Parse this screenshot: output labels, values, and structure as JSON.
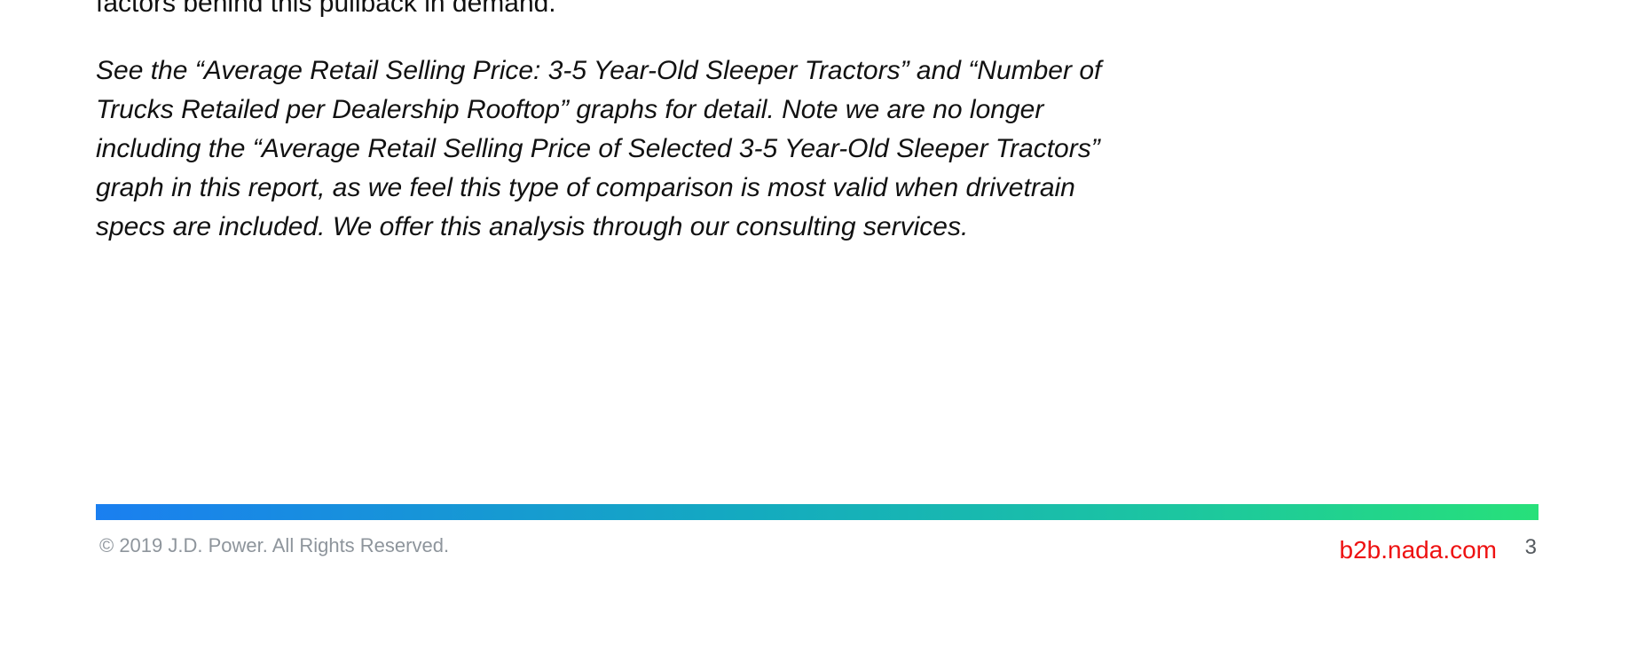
{
  "document": {
    "previous_line": "factors behind this pullback in demand.",
    "note_lines": [
      "See the “Average Retail Selling Price: 3-5 Year-Old Sleeper Tractors” and “Number of",
      "Trucks Retailed per Dealership Rooftop” graphs for detail. Note we are no longer",
      "including the “Average Retail Selling Price of Selected 3-5 Year-Old Sleeper Tractors”",
      "graph in this report, as we feel this type of comparison is most valid when drivetrain",
      "specs are included. We offer this analysis through our consulting services."
    ]
  },
  "footer": {
    "copyright": "© 2019 J.D. Power. All Rights Reserved.",
    "site": "b2b.nada.com",
    "page_number": "3"
  },
  "colors": {
    "bar_start": "#1a7ff0",
    "bar_end": "#27e07a",
    "site_link": "#ee1111",
    "footer_text": "#8e959c"
  }
}
